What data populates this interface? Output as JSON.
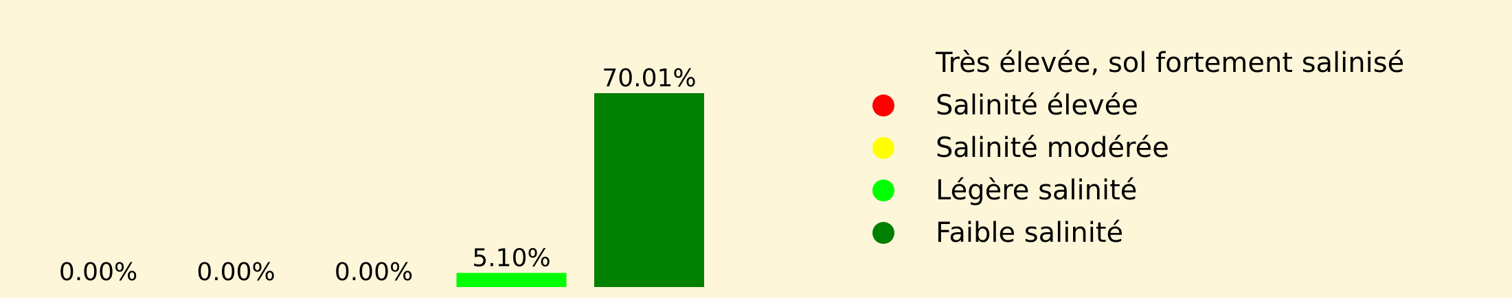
{
  "chart_data": {
    "type": "bar",
    "categories": [
      "Très élevée, sol fortement salinisé",
      "Salinité élevée",
      "Salinité modérée",
      "Légère salinité",
      "Faible salinité"
    ],
    "values": [
      0.0,
      0.0,
      0.0,
      5.1,
      70.01
    ],
    "value_labels": [
      "0.00%",
      "0.00%",
      "0.00%",
      "5.10%",
      "70.01%"
    ],
    "colors": [
      "#fdf6d9",
      "#ff0000",
      "#ffff00",
      "#00ff00",
      "#008000"
    ],
    "legend": {
      "placement": "right",
      "entries": [
        {
          "label": "Très élevée, sol fortement salinisé",
          "color": "#fdf6d9"
        },
        {
          "label": "Salinité élevée",
          "color": "#ff0000"
        },
        {
          "label": "Salinité modérée",
          "color": "#ffff00"
        },
        {
          "label": "Légère salinité",
          "color": "#00ff00"
        },
        {
          "label": "Faible salinité",
          "color": "#008000"
        }
      ]
    },
    "ylim": [
      0,
      75
    ],
    "grid": false,
    "background": "#fdf6d9"
  }
}
